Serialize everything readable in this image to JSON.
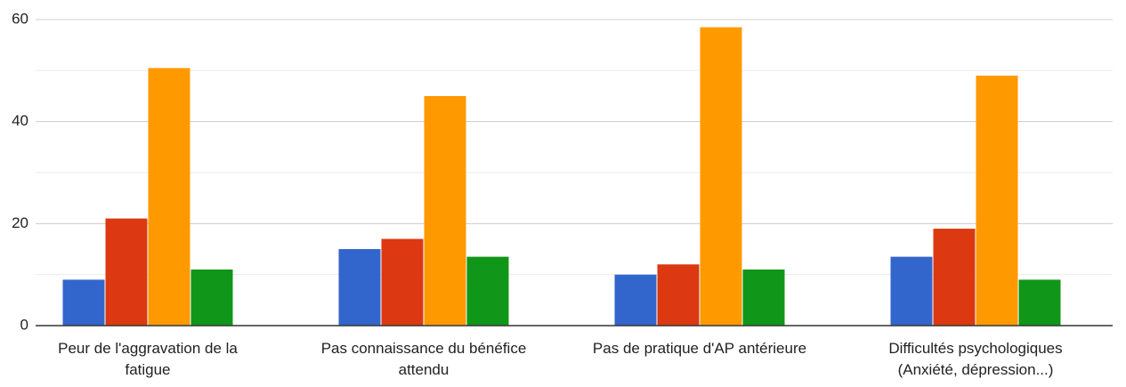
{
  "chart_data": {
    "type": "bar",
    "categories": [
      "Peur de l'aggravation de la fatigue",
      "Pas connaissance du bénéfice attendu",
      "Pas de pratique d'AP antérieure",
      "Difficultés psychologiques (Anxiété, dépression...)"
    ],
    "series": [
      {
        "color": "#3366cc",
        "values": [
          9,
          15,
          10,
          13.5
        ]
      },
      {
        "color": "#dc3912",
        "values": [
          21,
          17,
          12,
          19
        ]
      },
      {
        "color": "#ff9900",
        "values": [
          50.5,
          45,
          58.5,
          49
        ]
      },
      {
        "color": "#109618",
        "values": [
          11,
          13.5,
          11,
          9
        ]
      }
    ],
    "ylim": [
      0,
      60
    ],
    "yticks": [
      0,
      20,
      40,
      60
    ],
    "minor_yticks": [
      10,
      30,
      50
    ],
    "grid": true
  }
}
